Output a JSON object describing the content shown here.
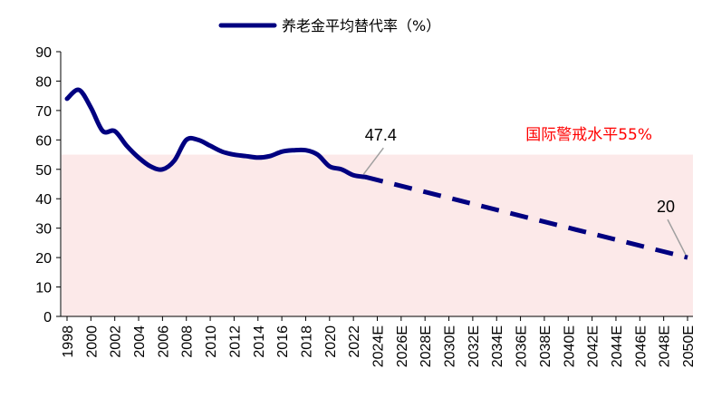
{
  "chart_data": {
    "type": "line",
    "legend": {
      "label": "养老金平均替代率（%）",
      "placement": "top-center"
    },
    "y_ticks": [
      "0",
      "10",
      "20",
      "30",
      "40",
      "50",
      "60",
      "70",
      "80",
      "90"
    ],
    "ylim": [
      0,
      90
    ],
    "x_tick_labels": [
      "1998",
      "2000",
      "2002",
      "2004",
      "2006",
      "2008",
      "2010",
      "2012",
      "2014",
      "2016",
      "2018",
      "2020",
      "2022",
      "2024E",
      "2026E",
      "2028E",
      "2030E",
      "2032E",
      "2034E",
      "2036E",
      "2038E",
      "2040E",
      "2042E",
      "2044E",
      "2046E",
      "2048E",
      "2050E"
    ],
    "xlim": [
      1998,
      2050
    ],
    "series": [
      {
        "style": "solid",
        "x": [
          1998,
          1999,
          2000,
          2001,
          2002,
          2003,
          2004,
          2005,
          2006,
          2007,
          2008,
          2009,
          2010,
          2011,
          2012,
          2013,
          2014,
          2015,
          2016,
          2017,
          2018,
          2019,
          2020,
          2021,
          2022,
          2023
        ],
        "y": [
          74,
          77,
          71,
          63,
          63,
          58,
          54,
          51,
          50,
          53,
          60,
          60,
          58,
          56,
          55,
          54.5,
          54,
          54.5,
          56,
          56.5,
          56.5,
          55,
          51,
          50,
          48,
          47.4
        ]
      },
      {
        "style": "dashed",
        "x": [
          2023,
          2050
        ],
        "y": [
          47.4,
          20
        ]
      }
    ],
    "warning_band": {
      "y": 55,
      "label": "国际警戒水平55%",
      "color": "#fce9e9",
      "text_color": "#ff0000"
    },
    "annotations": [
      {
        "x": 2023,
        "y": 47.4,
        "label": "47.4"
      },
      {
        "x": 2050,
        "y": 20,
        "label": "20"
      }
    ],
    "line_color": "#000080",
    "grid": false
  }
}
